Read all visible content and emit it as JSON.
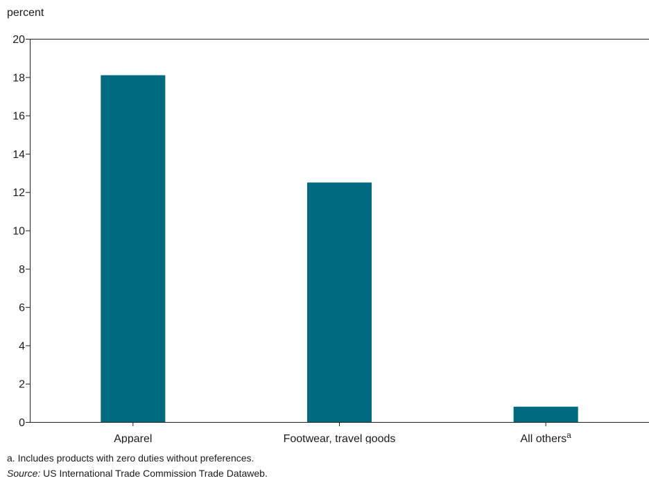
{
  "chart_data": {
    "type": "bar",
    "ylabel": "percent",
    "ylim": [
      0,
      20
    ],
    "yticks": [
      0,
      2,
      4,
      6,
      8,
      10,
      12,
      14,
      16,
      18,
      20
    ],
    "categories": [
      "Apparel",
      "Footwear, travel goods",
      "All others"
    ],
    "category_superscripts": [
      "",
      "",
      "a"
    ],
    "values": [
      18.1,
      12.5,
      0.8
    ],
    "grid": false,
    "legend": "none",
    "bar_color": "#006a80",
    "axis_color": "#1a1a1a"
  },
  "footnotes": {
    "note_a": "a. Includes products with zero duties without preferences.",
    "source_label": "Source:",
    "source_text": "US International Trade Commission Trade Dataweb."
  }
}
